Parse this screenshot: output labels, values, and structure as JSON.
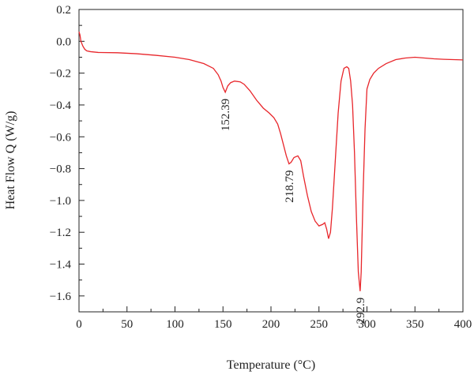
{
  "chart_data": {
    "type": "line",
    "title": "",
    "xlabel": "Temperature (°C)",
    "ylabel": "Heat Flow Q (W/g)",
    "xlim": [
      0,
      400
    ],
    "ylim": [
      -1.7,
      0.2
    ],
    "x_ticks": [
      0,
      50,
      100,
      150,
      200,
      250,
      300,
      350,
      400
    ],
    "x_tick_labels": [
      "0",
      "50",
      "100",
      "150",
      "200",
      "250",
      "300",
      "350",
      "400"
    ],
    "y_ticks": [
      0.2,
      0.0,
      -0.2,
      -0.4,
      -0.6,
      -0.8,
      -1.0,
      -1.2,
      -1.4,
      -1.6
    ],
    "y_tick_labels": [
      "0.2",
      "0.0",
      "−0.2",
      "−0.4",
      "−0.6",
      "−0.8",
      "−1.0",
      "−1.2",
      "−1.4",
      "−1.6"
    ],
    "grid": false,
    "series": [
      {
        "color": "#e8262b",
        "x": [
          0,
          1,
          2,
          4,
          6,
          8,
          12,
          20,
          40,
          60,
          80,
          100,
          115,
          130,
          140,
          145,
          148,
          150,
          152.39,
          155,
          158,
          162,
          168,
          172,
          178,
          185,
          192,
          198,
          203,
          207,
          210,
          213,
          216,
          218.79,
          221,
          224,
          228,
          231,
          234,
          238,
          242,
          246,
          250,
          254,
          256,
          258,
          260,
          262,
          264,
          267,
          270,
          273,
          276,
          279,
          281,
          283,
          285,
          287,
          289,
          291,
          292.9,
          294,
          296,
          298,
          300,
          303,
          307,
          312,
          320,
          330,
          340,
          350,
          360,
          370,
          380,
          390,
          400
        ],
        "y": [
          0.06,
          0.04,
          0.0,
          -0.03,
          -0.05,
          -0.06,
          -0.065,
          -0.07,
          -0.072,
          -0.078,
          -0.088,
          -0.1,
          -0.115,
          -0.14,
          -0.17,
          -0.21,
          -0.25,
          -0.29,
          -0.32,
          -0.28,
          -0.26,
          -0.25,
          -0.255,
          -0.27,
          -0.31,
          -0.37,
          -0.42,
          -0.45,
          -0.48,
          -0.52,
          -0.58,
          -0.65,
          -0.72,
          -0.77,
          -0.76,
          -0.73,
          -0.72,
          -0.75,
          -0.85,
          -0.97,
          -1.07,
          -1.13,
          -1.16,
          -1.15,
          -1.14,
          -1.18,
          -1.24,
          -1.2,
          -1.05,
          -0.75,
          -0.45,
          -0.25,
          -0.17,
          -0.16,
          -0.17,
          -0.25,
          -0.4,
          -0.7,
          -1.1,
          -1.45,
          -1.57,
          -1.45,
          -0.95,
          -0.55,
          -0.3,
          -0.24,
          -0.2,
          -0.17,
          -0.14,
          -0.115,
          -0.105,
          -0.1,
          -0.105,
          -0.11,
          -0.113,
          -0.115,
          -0.117
        ]
      }
    ],
    "annotations": [
      {
        "text": "152.39",
        "x": 152.39,
        "y": -0.32,
        "rotation": -90
      },
      {
        "text": "218.79",
        "x": 218.79,
        "y": -0.77,
        "rotation": -90
      },
      {
        "text": "292.9",
        "x": 292.9,
        "y": -1.57,
        "rotation": -90
      }
    ]
  }
}
